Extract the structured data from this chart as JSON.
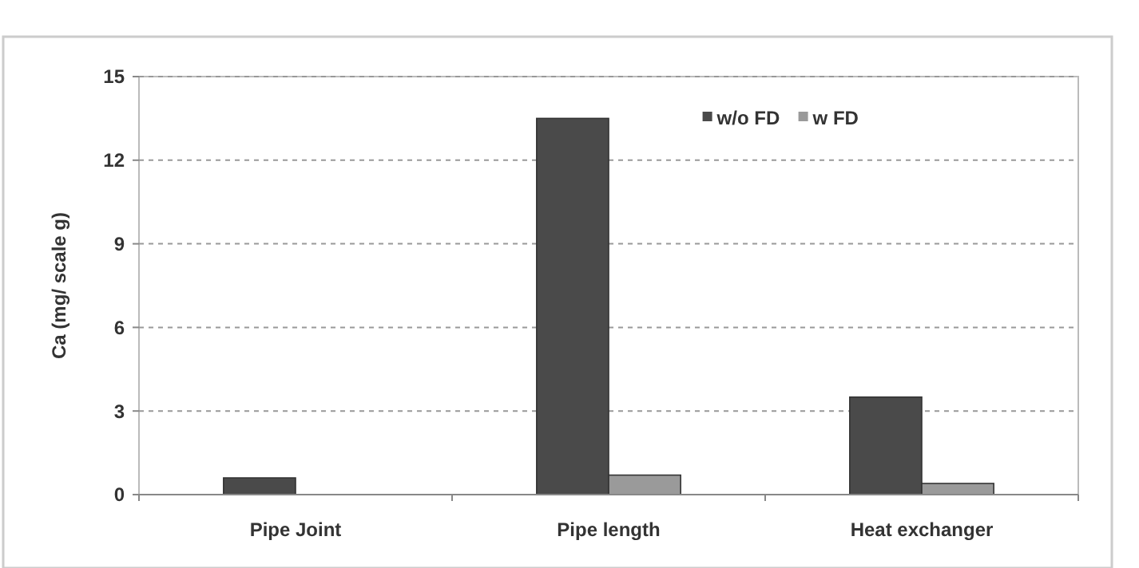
{
  "chart_data": {
    "type": "bar",
    "ylabel": "Ca (mg/ scale  g)",
    "categories": [
      "Pipe Joint",
      "Pipe length",
      "Heat exchanger"
    ],
    "series": [
      {
        "name": "w/o FD",
        "color": "#4a4a4a",
        "values": [
          0.6,
          13.5,
          3.5
        ]
      },
      {
        "name": "w FD",
        "color": "#9a9a9a",
        "values": [
          0,
          0.7,
          0.4
        ]
      }
    ],
    "ylim": [
      0,
      15
    ],
    "yticks": [
      0,
      3,
      6,
      9,
      12,
      15
    ],
    "grid": "y",
    "legend": "top right"
  }
}
